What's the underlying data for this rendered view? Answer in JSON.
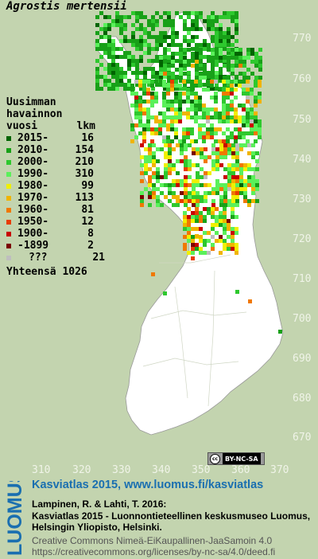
{
  "title": "Agrostis mertensii",
  "axis": {
    "y_labels": [
      "770",
      "760",
      "750",
      "740",
      "730",
      "720",
      "710",
      "700",
      "690",
      "680",
      "670"
    ],
    "x_labels": [
      "310",
      "320",
      "330",
      "340",
      "350",
      "360",
      "370"
    ]
  },
  "legend": {
    "header": [
      "Uusimman",
      "havainnon"
    ],
    "col_year": "vuosi",
    "col_count": "lkm",
    "rows": [
      {
        "label": "2015-",
        "count": "16",
        "color": "#006400"
      },
      {
        "label": "2010-",
        "count": "154",
        "color": "#18a018"
      },
      {
        "label": "2000-",
        "count": "210",
        "color": "#2ec82e"
      },
      {
        "label": "1990-",
        "count": "310",
        "color": "#5af05a"
      },
      {
        "label": "1980-",
        "count": "99",
        "color": "#f0f000"
      },
      {
        "label": "1970-",
        "count": "113",
        "color": "#f0b400"
      },
      {
        "label": "1960-",
        "count": "81",
        "color": "#f07800"
      },
      {
        "label": "1950-",
        "count": "12",
        "color": "#e83c00"
      },
      {
        "label": "1900-",
        "count": "8",
        "color": "#c80000"
      },
      {
        "label": "-1899",
        "count": "2",
        "color": "#7a0000"
      },
      {
        "label": "???",
        "count": "21",
        "color": "#bebebe"
      }
    ],
    "total_label": "Yhteensä",
    "total": "1026"
  },
  "license_badge": "BY-NC-SA",
  "footer": {
    "logo": "LUOMUS",
    "link": "Kasviatlas 2015, www.luomus.fi/kasviatlas",
    "citation": [
      "Lampinen, R. & Lahti, T. 2016:",
      "Kasviatlas 2015 - Luonnontieteellinen keskusmuseo Luomus,",
      "Helsingin Yliopisto, Helsinki."
    ],
    "license": [
      "Creative Commons Nimeä-EiKaupallinen-JaaSamoin 4.0",
      "https://creativecommons.org/licenses/by-nc-sa/4.0/deed.fi"
    ]
  }
}
